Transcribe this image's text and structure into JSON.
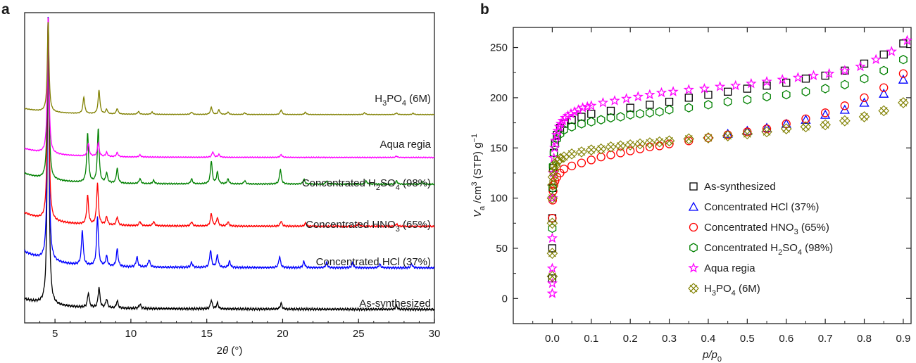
{
  "chart_data": [
    {
      "panel": "a",
      "type": "line",
      "xlabel_prefix": "2",
      "xlabel_symbol": "θ",
      "xlabel_suffix": " (°)",
      "xlim": [
        3,
        30
      ],
      "xticks": [
        5,
        10,
        15,
        20,
        25,
        30
      ],
      "yticks_shown": false,
      "series": [
        {
          "name": "As-synthesized",
          "color": "#000000",
          "offset": 0,
          "peak_scale": 1.0,
          "peaks": [
            [
              4.55,
              100
            ],
            [
              7.2,
              5
            ],
            [
              7.9,
              7
            ],
            [
              8.4,
              3
            ],
            [
              9.1,
              2.5
            ],
            [
              10.6,
              1.5
            ],
            [
              15.3,
              3
            ],
            [
              15.7,
              2
            ],
            [
              19.9,
              2
            ],
            [
              27.5,
              1.2
            ]
          ]
        },
        {
          "name": "Concentrated HCl (37%)",
          "color": "#0000ff",
          "offset": 1,
          "peak_scale": 1.0,
          "peaks": [
            [
              4.55,
              100
            ],
            [
              6.8,
              14
            ],
            [
              7.8,
              20
            ],
            [
              8.4,
              4
            ],
            [
              9.1,
              7
            ],
            [
              10.4,
              4
            ],
            [
              11.2,
              3
            ],
            [
              14.0,
              2
            ],
            [
              15.25,
              7
            ],
            [
              15.7,
              5
            ],
            [
              16.5,
              2.5
            ],
            [
              19.8,
              4.5
            ],
            [
              21.4,
              2.5
            ],
            [
              22.9,
              2
            ],
            [
              24.6,
              1.8
            ],
            [
              26.4,
              1.5
            ],
            [
              28.5,
              1.5
            ]
          ]
        },
        {
          "name": "Concentrated HNO3 (65%)",
          "color": "#ff0000",
          "offset": 2,
          "peak_scale": 1.0,
          "peaks": [
            [
              4.55,
              100
            ],
            [
              7.15,
              14
            ],
            [
              7.8,
              20
            ],
            [
              8.4,
              4
            ],
            [
              9.1,
              4
            ],
            [
              10.6,
              2
            ],
            [
              11.5,
              2
            ],
            [
              14.0,
              2
            ],
            [
              15.3,
              6
            ],
            [
              15.7,
              4
            ],
            [
              16.4,
              2
            ],
            [
              19.9,
              2.5
            ],
            [
              21.5,
              1.5
            ],
            [
              25.0,
              1.5
            ],
            [
              27.5,
              1.2
            ]
          ]
        },
        {
          "name": "Concentrated H2SO4 (98%)",
          "color": "#008000",
          "offset": 3,
          "peak_scale": 1.0,
          "peaks": [
            [
              4.55,
              100
            ],
            [
              7.15,
              30
            ],
            [
              7.85,
              33
            ],
            [
              8.4,
              6
            ],
            [
              9.1,
              9
            ],
            [
              10.6,
              3
            ],
            [
              11.5,
              2
            ],
            [
              14.0,
              3
            ],
            [
              15.3,
              14
            ],
            [
              15.7,
              7
            ],
            [
              16.4,
              3
            ],
            [
              17.5,
              2
            ],
            [
              19.85,
              9
            ],
            [
              21.4,
              3
            ],
            [
              22.9,
              2
            ],
            [
              25.5,
              2
            ],
            [
              27.5,
              2
            ],
            [
              29.2,
              1.5
            ]
          ]
        },
        {
          "name": "Aqua regia",
          "color": "#ff00ff",
          "offset": 4,
          "peak_scale": 1.0,
          "peaks": [
            [
              4.55,
              100
            ],
            [
              7.2,
              9
            ],
            [
              7.85,
              10
            ],
            [
              8.4,
              3
            ],
            [
              9.1,
              3
            ],
            [
              10.6,
              1.5
            ],
            [
              15.4,
              4
            ],
            [
              15.8,
              2
            ],
            [
              19.9,
              2
            ],
            [
              27.5,
              1
            ]
          ]
        },
        {
          "name": "H3PO4 (6M)",
          "color": "#808000",
          "offset": 5,
          "peak_scale": 1.0,
          "peaks": [
            [
              4.55,
              100
            ],
            [
              6.9,
              18
            ],
            [
              7.9,
              26
            ],
            [
              8.4,
              5
            ],
            [
              9.1,
              6
            ],
            [
              10.5,
              3
            ],
            [
              11.4,
              2.5
            ],
            [
              14.0,
              2.5
            ],
            [
              15.3,
              8
            ],
            [
              15.8,
              5
            ],
            [
              16.4,
              2.5
            ],
            [
              17.5,
              1.8
            ],
            [
              19.9,
              5
            ],
            [
              21.5,
              2.5
            ],
            [
              25.4,
              2
            ],
            [
              27.5,
              1.8
            ],
            [
              28.6,
              1.5
            ]
          ]
        }
      ],
      "labels": [
        {
          "series": "As-synthesized",
          "text": "As-synthesized"
        },
        {
          "series": "Concentrated HCl (37%)",
          "text": "Concentrated HCl (37%)"
        },
        {
          "series": "Concentrated HNO3 (65%)",
          "text_before": "Concentrated HNO",
          "sub": "3",
          "text_after": " (65%)"
        },
        {
          "series": "Concentrated H2SO4 (98%)",
          "text_before": "Concentrated H",
          "sub": "2",
          "text_mid": "SO",
          "sub2": "4",
          "text_after": " (98%)"
        },
        {
          "series": "Aqua regia",
          "text": "Aqua regia"
        },
        {
          "series": "H3PO4 (6M)",
          "text_before": "H",
          "sub": "3",
          "text_mid": "PO",
          "sub2": "4",
          "text_after": " (6M)"
        }
      ]
    },
    {
      "panel": "b",
      "type": "scatter",
      "xlabel": "p/p0",
      "ylabel_main": "V",
      "ylabel_sub": "a",
      "ylabel_rest1": " /cm",
      "ylabel_sup1": "3",
      "ylabel_rest2": " (STP) g",
      "ylabel_sup2": "−1",
      "xlim": [
        -0.1,
        0.92
      ],
      "ylim": [
        -25,
        270
      ],
      "xticks": [
        0.0,
        0.1,
        0.2,
        0.3,
        0.4,
        0.5,
        0.6,
        0.7,
        0.8,
        0.9
      ],
      "xtick_labels": [
        "0.0",
        "0.1",
        "0.2",
        "0.3",
        "0.4",
        "0.5",
        "0.6",
        "0.7",
        "0.8",
        "0.9"
      ],
      "yticks": [
        0,
        50,
        100,
        150,
        200,
        250
      ],
      "yticks_labels": [
        "0",
        "50",
        "100",
        "150",
        "200",
        "250"
      ],
      "legend_position": "bottom-right",
      "series": [
        {
          "name": "As-synthesized",
          "marker": "square",
          "color": "#000000",
          "x": [
            0.0,
            0.0,
            0.0,
            0.001,
            0.002,
            0.004,
            0.007,
            0.012,
            0.02,
            0.03,
            0.05,
            0.075,
            0.1,
            0.15,
            0.2,
            0.25,
            0.3,
            0.35,
            0.4,
            0.45,
            0.5,
            0.55,
            0.6,
            0.65,
            0.7,
            0.75,
            0.8,
            0.85,
            0.9
          ],
          "y": [
            20,
            50,
            80,
            110,
            130,
            145,
            155,
            163,
            170,
            174,
            178,
            181,
            184,
            187,
            190,
            193,
            196,
            200,
            203,
            206,
            209,
            212,
            215,
            219,
            222,
            227,
            234,
            243,
            254
          ]
        },
        {
          "name": "Concentrated HCl (37%)",
          "marker": "triangle",
          "color": "#0000ff",
          "x": [
            0.45,
            0.5,
            0.55,
            0.6,
            0.65,
            0.7,
            0.75,
            0.8,
            0.85,
            0.9
          ],
          "y": [
            164,
            167,
            170,
            174,
            178,
            183,
            188,
            195,
            204,
            218
          ]
        },
        {
          "name": "Concentrated HNO3 (65%)",
          "marker": "circle",
          "color": "#ff0000",
          "x": [
            0.0,
            0.001,
            0.002,
            0.004,
            0.007,
            0.012,
            0.02,
            0.03,
            0.05,
            0.075,
            0.1,
            0.125,
            0.15,
            0.175,
            0.2,
            0.225,
            0.25,
            0.275,
            0.3,
            0.35,
            0.4,
            0.45,
            0.5,
            0.55,
            0.6,
            0.65,
            0.7,
            0.75,
            0.8,
            0.85,
            0.9
          ],
          "y": [
            80,
            98,
            107,
            113,
            117,
            121,
            125,
            129,
            132,
            135,
            138,
            141,
            143,
            145,
            147,
            149,
            151,
            152,
            154,
            157,
            160,
            163,
            166,
            169,
            174,
            179,
            185,
            192,
            200,
            210,
            224
          ]
        },
        {
          "name": "Concentrated H2SO4 (98%)",
          "marker": "hexagon",
          "color": "#008000",
          "x": [
            0.0,
            0.001,
            0.002,
            0.004,
            0.007,
            0.012,
            0.02,
            0.03,
            0.05,
            0.075,
            0.1,
            0.125,
            0.15,
            0.175,
            0.2,
            0.225,
            0.25,
            0.275,
            0.3,
            0.35,
            0.4,
            0.45,
            0.5,
            0.55,
            0.6,
            0.65,
            0.7,
            0.75,
            0.8,
            0.85,
            0.9
          ],
          "y": [
            70,
            110,
            132,
            145,
            153,
            159,
            164,
            168,
            171,
            174,
            176,
            178,
            180,
            181,
            183,
            184,
            185,
            186,
            188,
            190,
            193,
            196,
            198,
            201,
            203,
            206,
            209,
            213,
            219,
            227,
            238
          ]
        },
        {
          "name": "Aqua regia",
          "marker": "star",
          "color": "#ff00ff",
          "x": [
            0.0,
            0.0,
            0.0,
            0.0,
            0.001,
            0.002,
            0.004,
            0.006,
            0.008,
            0.011,
            0.014,
            0.018,
            0.022,
            0.027,
            0.033,
            0.04,
            0.048,
            0.057,
            0.067,
            0.078,
            0.09,
            0.1,
            0.13,
            0.16,
            0.19,
            0.22,
            0.25,
            0.28,
            0.31,
            0.35,
            0.39,
            0.43,
            0.47,
            0.51,
            0.55,
            0.59,
            0.63,
            0.67,
            0.71,
            0.75,
            0.79,
            0.83,
            0.87,
            0.91
          ],
          "y": [
            5,
            15,
            30,
            60,
            100,
            125,
            140,
            150,
            157,
            163,
            167,
            171,
            174,
            177,
            180,
            182,
            184,
            186,
            188,
            190,
            191,
            192,
            195,
            197,
            199,
            201,
            203,
            205,
            206,
            208,
            209,
            211,
            212,
            214,
            216,
            218,
            220,
            222,
            224,
            227,
            231,
            238,
            246,
            257
          ]
        },
        {
          "name": "H3PO4 (6M)",
          "marker": "cross-x",
          "color": "#808000",
          "x": [
            0.0,
            0.0,
            0.0,
            0.0,
            0.001,
            0.002,
            0.004,
            0.007,
            0.012,
            0.02,
            0.03,
            0.05,
            0.075,
            0.1,
            0.125,
            0.15,
            0.175,
            0.2,
            0.225,
            0.25,
            0.275,
            0.3,
            0.35,
            0.4,
            0.45,
            0.5,
            0.55,
            0.6,
            0.65,
            0.7,
            0.75,
            0.8,
            0.85,
            0.9
          ],
          "y": [
            22,
            45,
            75,
            100,
            113,
            121,
            127,
            132,
            136,
            139,
            141,
            144,
            146,
            148,
            149,
            151,
            152,
            153,
            154,
            155,
            156,
            157,
            159,
            160,
            162,
            164,
            166,
            169,
            171,
            173,
            177,
            181,
            187,
            195
          ]
        }
      ],
      "legend": [
        {
          "marker": "square",
          "color": "#000000",
          "text": "As-synthesized"
        },
        {
          "marker": "triangle",
          "color": "#0000ff",
          "text": "Concentrated HCl (37%)"
        },
        {
          "marker": "circle",
          "color": "#ff0000",
          "text_before": "Concentrated HNO",
          "sub": "3",
          "text_after": " (65%)"
        },
        {
          "marker": "hexagon",
          "color": "#008000",
          "text_before": "Concentrated H",
          "sub": "2",
          "text_mid": "SO",
          "sub2": "4",
          "text_after": " (98%)"
        },
        {
          "marker": "star",
          "color": "#ff00ff",
          "text": "Aqua regia"
        },
        {
          "marker": "cross-x",
          "color": "#808000",
          "text_before": "H",
          "sub": "3",
          "text_mid": "PO",
          "sub2": "4",
          "text_after": " (6M)"
        }
      ]
    }
  ],
  "panel_letters": {
    "a": "a",
    "b": "b"
  }
}
